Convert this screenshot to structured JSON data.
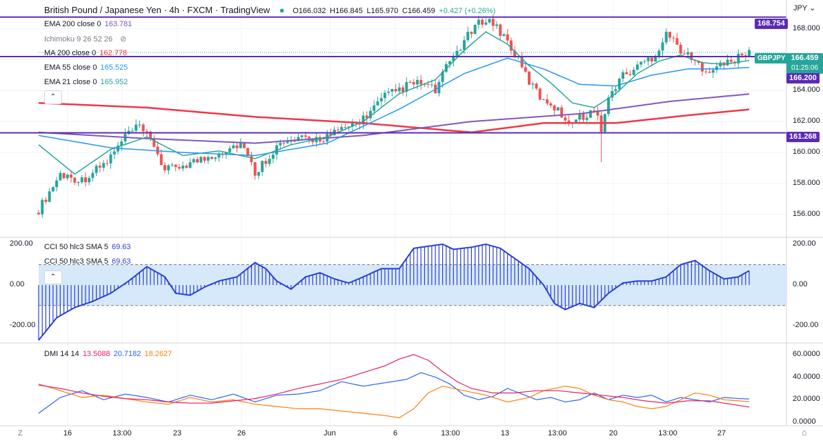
{
  "header": {
    "symbol": "British Pound / Japanese Yen · 4h · FXCM · TradingView",
    "ohlc": {
      "o": "O166.032",
      "h": "H166.845",
      "l": "L165.970",
      "c": "C166.459",
      "chg": "+0.427 (+0.26%)"
    }
  },
  "legends": {
    "ema200": {
      "name": "EMA 200 close 0",
      "value": "163.781",
      "color": "#7e57c2"
    },
    "ichimoku": {
      "name": "Ichimoku 9 26 52 26"
    },
    "ma200": {
      "name": "MA 200 close 0",
      "value": "162.778",
      "color": "#f23645"
    },
    "ema55": {
      "name": "EMA 55 close 0",
      "value": "165.525",
      "color": "#2196f3"
    },
    "ema21": {
      "name": "EMA 21 close 0",
      "value": "165.952",
      "color": "#26a69a"
    },
    "cci1": {
      "name": "CCI 50 hlc3 SMA 5",
      "value": "69.63"
    },
    "cci2": {
      "name": "CCI 50 hlc3 SMA 5",
      "value": "69.63"
    },
    "dmi": {
      "name": "DMI 14 14",
      "v1": "13.5088",
      "v2": "20.7182",
      "v3": "18.2627"
    }
  },
  "currency": "JPY",
  "price_tags": {
    "symbol": "GBPJPY",
    "last": "166.459",
    "countdown": "01:25:06",
    "level_top": "168.754",
    "level_mid": "166.200",
    "level_bottom": "161.268"
  },
  "axis_labels": {
    "price": [
      "168.000",
      "166.000",
      "164.000",
      "162.000",
      "160.000",
      "158.000",
      "156.000"
    ],
    "cci": [
      "200.00",
      "0.00",
      "-200.00"
    ],
    "dmi": [
      "60.0000",
      "40.0000",
      "20.0000",
      "0.0000"
    ],
    "time": [
      "16",
      "13:00",
      "23",
      "26",
      "Jun",
      "6",
      "13:00",
      "13",
      "13:00",
      "20",
      "13:00",
      "27"
    ]
  },
  "footer": {
    "left_icon": "Z",
    "right_icon": "⌂"
  },
  "colors": {
    "up": "#26a69a",
    "down": "#ef5350",
    "level": "#5b2bb5",
    "cci": "#2a3fd6",
    "cci_band": "#d6e9fb",
    "dmi_plus": "#2962ff",
    "dmi_minus": "#ff7f0e",
    "adx": "#e91e63"
  },
  "chart_data": [
    {
      "type": "candlestick",
      "title": "British Pound / Japanese Yen · 4h · FXCM",
      "ylim": [
        155.0,
        169.5
      ],
      "horizontal_levels": [
        168.754,
        166.2,
        161.268
      ],
      "close_path": [
        [
          0,
          156.3
        ],
        [
          6,
          158.6
        ],
        [
          12,
          158.2
        ],
        [
          19,
          159.4
        ],
        [
          25,
          161.3
        ],
        [
          28,
          161.6
        ],
        [
          32,
          160.5
        ],
        [
          35,
          158.8
        ],
        [
          40,
          159.2
        ],
        [
          46,
          159.6
        ],
        [
          52,
          160.2
        ],
        [
          56,
          160.6
        ],
        [
          60,
          158.7
        ],
        [
          66,
          160.4
        ],
        [
          72,
          160.8
        ],
        [
          78,
          160.9
        ],
        [
          84,
          161.4
        ],
        [
          90,
          162.2
        ],
        [
          96,
          163.6
        ],
        [
          102,
          164.3
        ],
        [
          106,
          164.5
        ],
        [
          110,
          164.0
        ],
        [
          114,
          165.9
        ],
        [
          118,
          167.2
        ],
        [
          121,
          168.1
        ],
        [
          124,
          168.7
        ],
        [
          127,
          168.1
        ],
        [
          130,
          167.2
        ],
        [
          133,
          165.9
        ],
        [
          136,
          164.6
        ],
        [
          139,
          163.6
        ],
        [
          142,
          163.2
        ],
        [
          145,
          162.4
        ],
        [
          148,
          162.0
        ],
        [
          151,
          162.4
        ],
        [
          154,
          162.7
        ],
        [
          156,
          161.6
        ],
        [
          158,
          163.4
        ],
        [
          161,
          164.8
        ],
        [
          164,
          165.2
        ],
        [
          168,
          165.9
        ],
        [
          171,
          166.3
        ],
        [
          174,
          167.8
        ],
        [
          177,
          166.9
        ],
        [
          180,
          166.2
        ],
        [
          183,
          165.6
        ],
        [
          186,
          165.4
        ],
        [
          189,
          165.6
        ],
        [
          192,
          165.9
        ],
        [
          195,
          166.2
        ],
        [
          197,
          166.45
        ]
      ],
      "n_bars": 198,
      "ema21": [
        [
          0,
          160.5
        ],
        [
          10,
          158.6
        ],
        [
          20,
          160.2
        ],
        [
          30,
          161.0
        ],
        [
          40,
          159.8
        ],
        [
          50,
          160.1
        ],
        [
          60,
          159.6
        ],
        [
          70,
          160.5
        ],
        [
          80,
          161.0
        ],
        [
          90,
          162.0
        ],
        [
          100,
          163.8
        ],
        [
          110,
          164.7
        ],
        [
          118,
          166.6
        ],
        [
          124,
          167.8
        ],
        [
          130,
          167.0
        ],
        [
          136,
          165.6
        ],
        [
          142,
          164.5
        ],
        [
          148,
          163.2
        ],
        [
          154,
          162.9
        ],
        [
          160,
          163.8
        ],
        [
          166,
          165.1
        ],
        [
          172,
          165.9
        ],
        [
          178,
          166.3
        ],
        [
          184,
          165.8
        ],
        [
          190,
          165.7
        ],
        [
          197,
          165.95
        ]
      ],
      "ema55": [
        [
          0,
          161.1
        ],
        [
          20,
          160.3
        ],
        [
          40,
          160.0
        ],
        [
          60,
          159.8
        ],
        [
          80,
          160.6
        ],
        [
          100,
          162.8
        ],
        [
          118,
          165.1
        ],
        [
          130,
          166.1
        ],
        [
          140,
          165.4
        ],
        [
          150,
          164.4
        ],
        [
          160,
          164.3
        ],
        [
          170,
          165.0
        ],
        [
          180,
          165.4
        ],
        [
          190,
          165.4
        ],
        [
          197,
          165.5
        ]
      ],
      "ema200": [
        [
          0,
          161.3
        ],
        [
          30,
          160.9
        ],
        [
          60,
          160.6
        ],
        [
          90,
          161.1
        ],
        [
          120,
          162.0
        ],
        [
          150,
          162.5
        ],
        [
          175,
          163.3
        ],
        [
          197,
          163.78
        ]
      ],
      "ma200": [
        [
          0,
          163.2
        ],
        [
          30,
          162.9
        ],
        [
          60,
          162.3
        ],
        [
          90,
          161.9
        ],
        [
          120,
          161.3
        ],
        [
          140,
          161.9
        ],
        [
          160,
          161.9
        ],
        [
          180,
          162.4
        ],
        [
          197,
          162.78
        ]
      ]
    },
    {
      "type": "line",
      "title": "CCI 50 hlc3 SMA 5",
      "ylim": [
        -280,
        230
      ],
      "bands": [
        100,
        -100
      ],
      "series": [
        {
          "values": [
            [
              0,
              -270
            ],
            [
              5,
              -160
            ],
            [
              10,
              -110
            ],
            [
              15,
              -80
            ],
            [
              20,
              -40
            ],
            [
              25,
              20
            ],
            [
              30,
              90
            ],
            [
              35,
              40
            ],
            [
              38,
              -40
            ],
            [
              42,
              -50
            ],
            [
              46,
              -10
            ],
            [
              50,
              20
            ],
            [
              55,
              40
            ],
            [
              60,
              110
            ],
            [
              63,
              80
            ],
            [
              66,
              20
            ],
            [
              70,
              -20
            ],
            [
              74,
              40
            ],
            [
              78,
              60
            ],
            [
              82,
              30
            ],
            [
              86,
              10
            ],
            [
              90,
              40
            ],
            [
              95,
              80
            ],
            [
              100,
              80
            ],
            [
              104,
              180
            ],
            [
              108,
              190
            ],
            [
              112,
              200
            ],
            [
              115,
              175
            ],
            [
              120,
              185
            ],
            [
              124,
              200
            ],
            [
              128,
              180
            ],
            [
              132,
              130
            ],
            [
              136,
              80
            ],
            [
              140,
              0
            ],
            [
              143,
              -90
            ],
            [
              146,
              -120
            ],
            [
              150,
              -90
            ],
            [
              154,
              -110
            ],
            [
              158,
              -40
            ],
            [
              162,
              10
            ],
            [
              166,
              20
            ],
            [
              170,
              20
            ],
            [
              174,
              40
            ],
            [
              178,
              100
            ],
            [
              182,
              120
            ],
            [
              186,
              70
            ],
            [
              190,
              30
            ],
            [
              194,
              40
            ],
            [
              197,
              70
            ]
          ]
        }
      ]
    },
    {
      "type": "line",
      "title": "DMI 14 14",
      "ylim": [
        0,
        66
      ],
      "series": [
        {
          "values": [
            [
              0,
              8
            ],
            [
              6,
              22
            ],
            [
              12,
              28
            ],
            [
              18,
              20
            ],
            [
              24,
              25
            ],
            [
              30,
              22
            ],
            [
              36,
              18
            ],
            [
              42,
              24
            ],
            [
              48,
              20
            ],
            [
              54,
              25
            ],
            [
              60,
              18
            ],
            [
              66,
              24
            ],
            [
              72,
              25
            ],
            [
              78,
              28
            ],
            [
              84,
              36
            ],
            [
              90,
              32
            ],
            [
              96,
              35
            ],
            [
              102,
              38
            ],
            [
              106,
              44
            ],
            [
              110,
              40
            ],
            [
              114,
              34
            ],
            [
              118,
              24
            ],
            [
              122,
              20
            ],
            [
              126,
              23
            ],
            [
              130,
              30
            ],
            [
              134,
              25
            ],
            [
              138,
              20
            ],
            [
              142,
              22
            ],
            [
              146,
              18
            ],
            [
              150,
              20
            ],
            [
              154,
              26
            ],
            [
              158,
              20
            ],
            [
              162,
              24
            ],
            [
              166,
              22
            ],
            [
              170,
              24
            ],
            [
              174,
              18
            ],
            [
              178,
              22
            ],
            [
              182,
              20
            ],
            [
              186,
              18
            ],
            [
              190,
              22
            ],
            [
              194,
              21
            ],
            [
              197,
              20.7
            ]
          ]
        },
        {
          "values": [
            [
              0,
              34
            ],
            [
              6,
              28
            ],
            [
              12,
              22
            ],
            [
              18,
              24
            ],
            [
              24,
              21
            ],
            [
              30,
              18
            ],
            [
              36,
              16
            ],
            [
              42,
              22
            ],
            [
              48,
              18
            ],
            [
              54,
              20
            ],
            [
              60,
              16
            ],
            [
              66,
              14
            ],
            [
              72,
              12
            ],
            [
              78,
              12
            ],
            [
              84,
              10
            ],
            [
              90,
              8
            ],
            [
              96,
              6
            ],
            [
              100,
              4
            ],
            [
              104,
              12
            ],
            [
              108,
              26
            ],
            [
              112,
              32
            ],
            [
              118,
              28
            ],
            [
              124,
              24
            ],
            [
              130,
              18
            ],
            [
              136,
              22
            ],
            [
              140,
              28
            ],
            [
              146,
              32
            ],
            [
              150,
              30
            ],
            [
              154,
              24
            ],
            [
              158,
              20
            ],
            [
              162,
              18
            ],
            [
              166,
              14
            ],
            [
              170,
              12
            ],
            [
              174,
              14
            ],
            [
              178,
              20
            ],
            [
              182,
              26
            ],
            [
              186,
              24
            ],
            [
              190,
              20
            ],
            [
              194,
              19
            ],
            [
              197,
              18.3
            ]
          ]
        },
        {
          "values": [
            [
              0,
              33
            ],
            [
              6,
              30
            ],
            [
              12,
              26
            ],
            [
              18,
              23
            ],
            [
              24,
              21
            ],
            [
              30,
              20
            ],
            [
              36,
              18
            ],
            [
              42,
              17
            ],
            [
              48,
              17
            ],
            [
              54,
              19
            ],
            [
              60,
              21
            ],
            [
              66,
              25
            ],
            [
              72,
              30
            ],
            [
              78,
              34
            ],
            [
              84,
              38
            ],
            [
              90,
              44
            ],
            [
              96,
              50
            ],
            [
              100,
              56
            ],
            [
              104,
              60
            ],
            [
              108,
              55
            ],
            [
              112,
              45
            ],
            [
              116,
              36
            ],
            [
              120,
              30
            ],
            [
              126,
              26
            ],
            [
              132,
              26
            ],
            [
              138,
              28
            ],
            [
              144,
              28
            ],
            [
              150,
              26
            ],
            [
              156,
              24
            ],
            [
              162,
              22
            ],
            [
              168,
              19
            ],
            [
              174,
              17
            ],
            [
              180,
              19
            ],
            [
              186,
              19
            ],
            [
              192,
              16
            ],
            [
              197,
              13.5
            ]
          ]
        }
      ]
    }
  ]
}
